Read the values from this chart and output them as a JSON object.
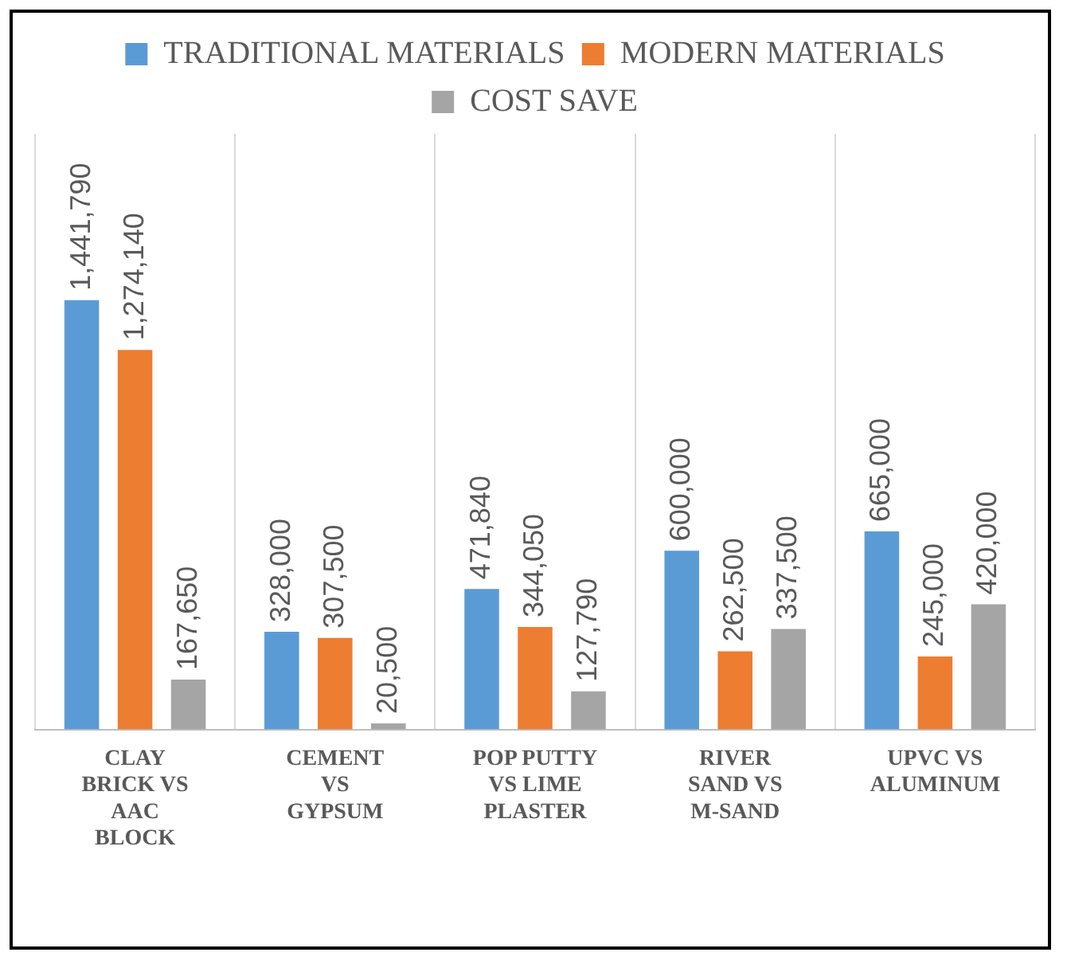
{
  "chart_data": {
    "type": "bar",
    "categories": [
      "CLAY\nBRICK VS\nAAC\nBLOCK",
      "CEMENT\nVS\nGYPSUM",
      "POP PUTTY\nVS LIME\nPLASTER",
      "RIVER\nSAND VS\nM-SAND",
      "UPVC VS\nALUMINUM"
    ],
    "series": [
      {
        "name": "TRADITIONAL MATERIALS",
        "color": "#5b9bd5",
        "values": [
          1441790,
          328000,
          471840,
          600000,
          665000
        ],
        "value_labels": [
          "1,441,790",
          "328,000",
          "471,840",
          "600,000",
          "665,000"
        ]
      },
      {
        "name": "MODERN MATERIALS",
        "color": "#ed7d31",
        "values": [
          1274140,
          307500,
          344050,
          262500,
          245000
        ],
        "value_labels": [
          "1,274,140",
          "307,500",
          "344,050",
          "262,500",
          "245,000"
        ]
      },
      {
        "name": "COST SAVE",
        "color": "#a5a5a5",
        "values": [
          167650,
          20500,
          127790,
          337500,
          420000
        ],
        "value_labels": [
          "167,650",
          "20,500",
          "127,790",
          "337,500",
          "420,000"
        ]
      }
    ],
    "grid": "x",
    "legend": "top",
    "tick_labels": "x"
  }
}
